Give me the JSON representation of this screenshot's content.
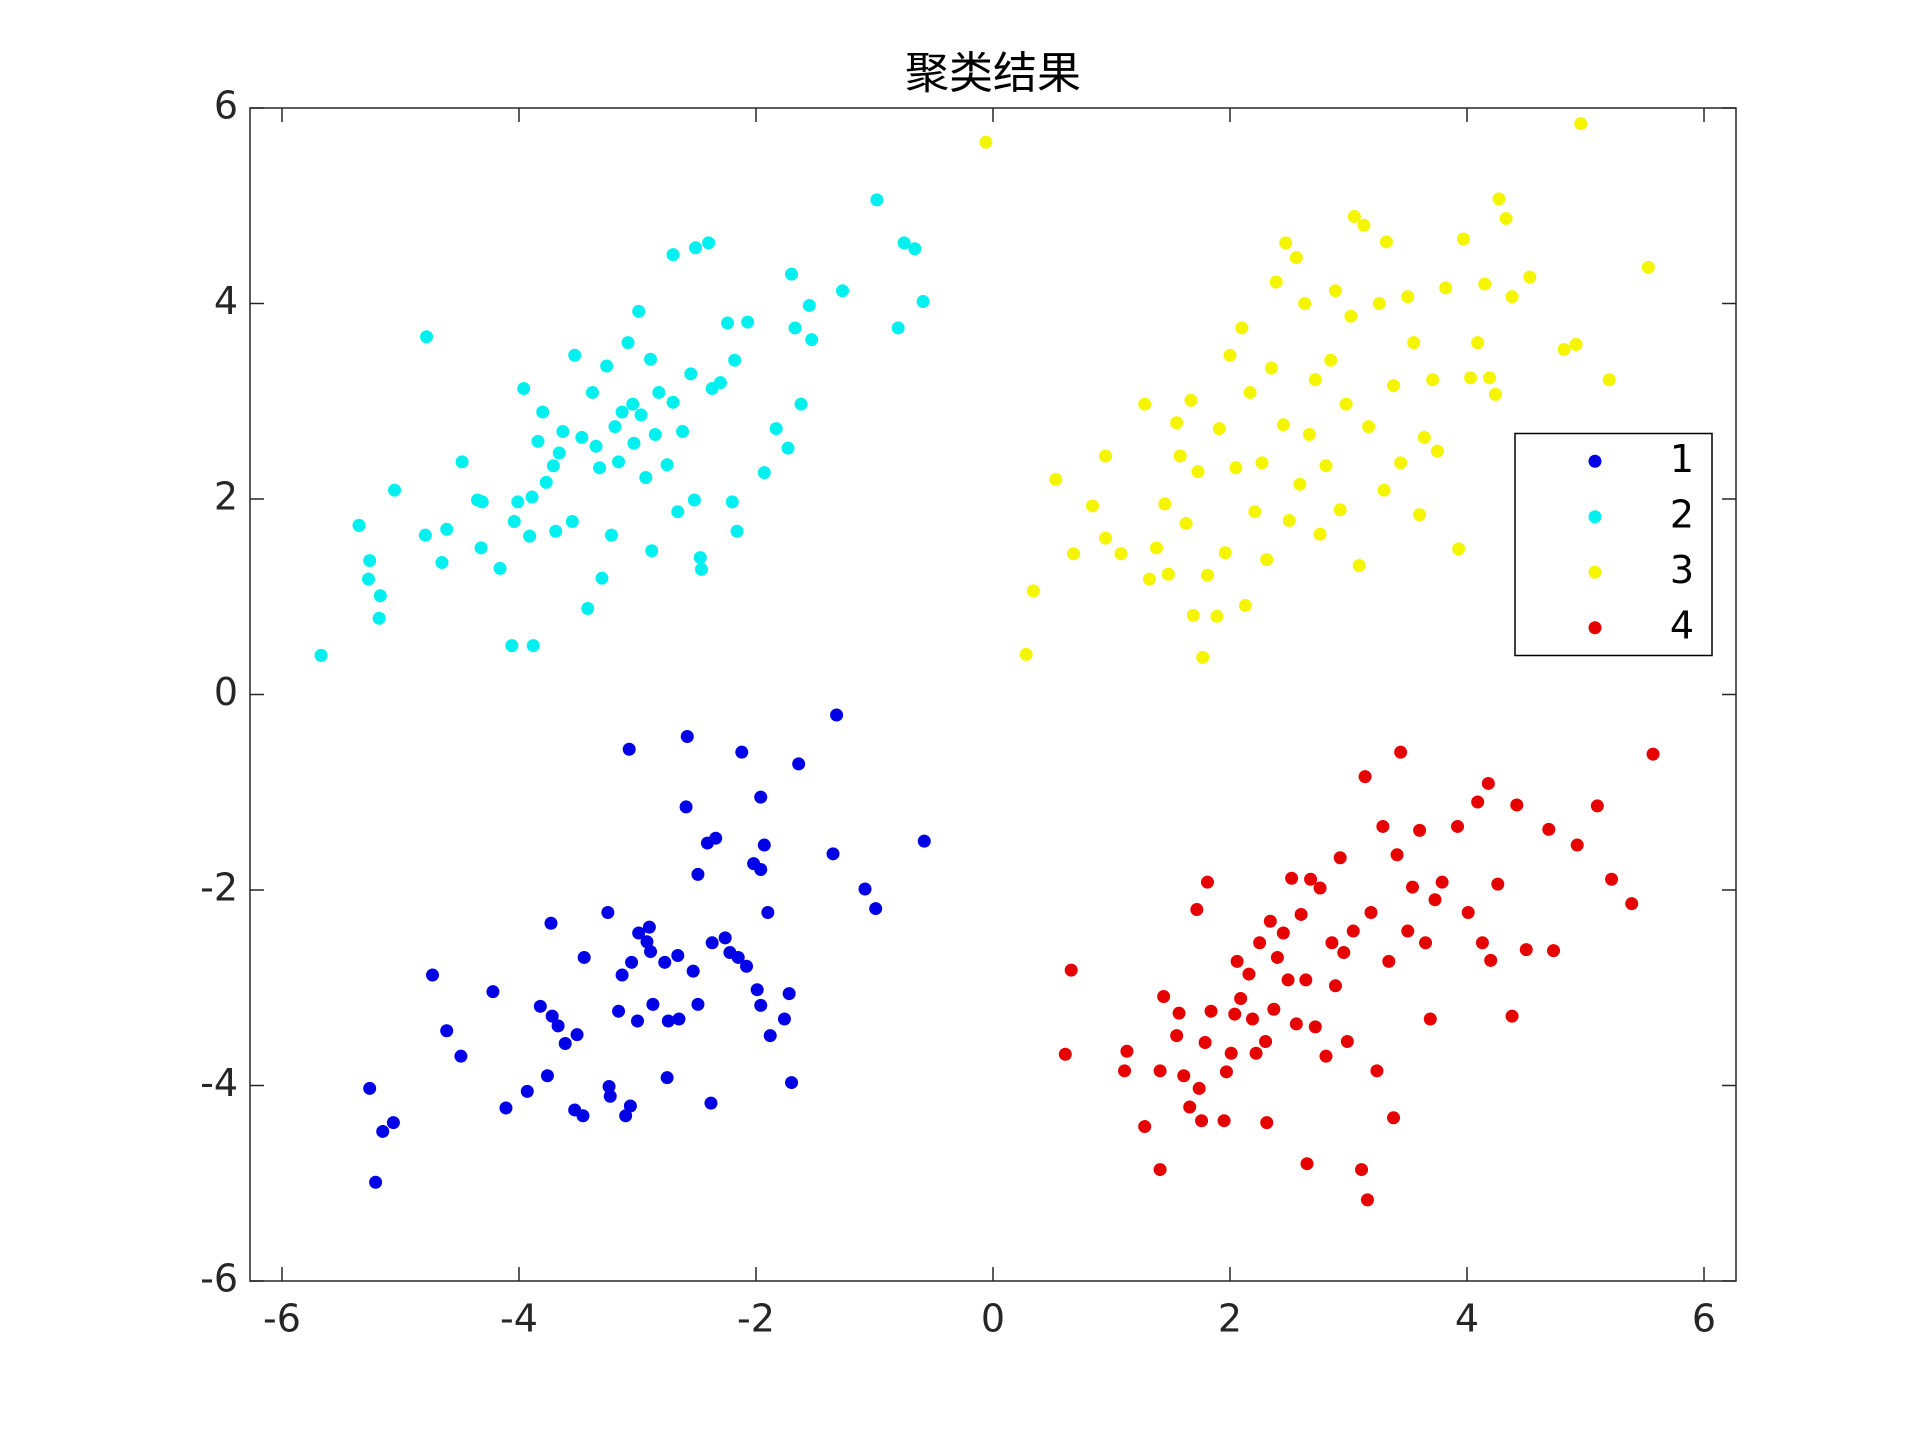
{
  "chart_data": {
    "type": "scatter",
    "title": "聚类结果",
    "xlim": [
      -6.27,
      6.27
    ],
    "ylim": [
      -6,
      6
    ],
    "xticks": [
      -6,
      -4,
      -2,
      0,
      2,
      4,
      6
    ],
    "yticks": [
      -6,
      -4,
      -2,
      0,
      2,
      4,
      6
    ],
    "legend": "east",
    "box": true,
    "series": [
      {
        "name": "1",
        "color": "#0000e6",
        "x": [
          -5.26,
          -5.21,
          -5.15,
          -5.06,
          -4.73,
          -4.61,
          -4.49,
          -4.22,
          -4.11,
          -3.93,
          -3.82,
          -3.76,
          -3.73,
          -3.72,
          -3.67,
          -3.61,
          -3.53,
          -3.51,
          -3.46,
          -3.45,
          -3.25,
          -3.24,
          -3.23,
          -3.16,
          -3.13,
          -3.1,
          -3.07,
          -3.06,
          -3.05,
          -3.0,
          -2.99,
          -2.92,
          -2.9,
          -2.89,
          -2.87,
          -2.77,
          -2.75,
          -2.74,
          -2.66,
          -2.65,
          -2.59,
          -2.58,
          -2.53,
          -2.49,
          -2.49,
          -2.41,
          -2.38,
          -2.37,
          -2.34,
          -2.26,
          -2.22,
          -2.15,
          -2.12,
          -2.08,
          -2.02,
          -1.99,
          -1.96,
          -1.96,
          -1.96,
          -1.93,
          -1.9,
          -1.88,
          -1.76,
          -1.72,
          -1.7,
          -1.64,
          -1.35,
          -1.32,
          -1.08,
          -0.99,
          -0.58
        ],
        "y": [
          -4.03,
          -4.99,
          -4.47,
          -4.38,
          -2.87,
          -3.44,
          -3.7,
          -3.04,
          -4.23,
          -4.06,
          -3.19,
          -3.9,
          -2.34,
          -3.29,
          -3.39,
          -3.57,
          -4.25,
          -3.48,
          -4.31,
          -2.69,
          -2.23,
          -4.01,
          -4.11,
          -3.24,
          -2.87,
          -4.31,
          -0.56,
          -4.21,
          -2.74,
          -3.34,
          -2.44,
          -2.53,
          -2.38,
          -2.63,
          -3.17,
          -2.74,
          -3.92,
          -3.34,
          -2.67,
          -3.32,
          -1.15,
          -0.43,
          -2.83,
          -3.17,
          -1.84,
          -1.52,
          -4.18,
          -2.54,
          -1.47,
          -2.49,
          -2.64,
          -2.69,
          -0.59,
          -2.78,
          -1.73,
          -3.02,
          -3.18,
          -1.05,
          -1.79,
          -1.54,
          -2.23,
          -3.49,
          -3.32,
          -3.06,
          -3.97,
          -0.71,
          -1.63,
          -0.21,
          -1.99,
          -2.19,
          -1.5
        ]
      },
      {
        "name": "2",
        "color": "#00f0f0",
        "x": [
          -5.67,
          -5.35,
          -5.26,
          -5.27,
          -5.17,
          -5.18,
          -5.05,
          -4.78,
          -4.79,
          -4.65,
          -4.61,
          -4.48,
          -4.35,
          -4.32,
          -4.31,
          -4.16,
          -4.06,
          -4.04,
          -4.01,
          -3.96,
          -3.91,
          -3.89,
          -3.88,
          -3.84,
          -3.8,
          -3.77,
          -3.71,
          -3.69,
          -3.66,
          -3.63,
          -3.55,
          -3.53,
          -3.47,
          -3.42,
          -3.38,
          -3.35,
          -3.32,
          -3.3,
          -3.26,
          -3.22,
          -3.19,
          -3.16,
          -3.13,
          -3.08,
          -3.04,
          -3.03,
          -2.99,
          -2.97,
          -2.93,
          -2.89,
          -2.88,
          -2.85,
          -2.82,
          -2.75,
          -2.7,
          -2.7,
          -2.66,
          -2.62,
          -2.55,
          -2.52,
          -2.51,
          -2.47,
          -2.46,
          -2.4,
          -2.37,
          -2.3,
          -2.24,
          -2.2,
          -2.18,
          -2.16,
          -2.07,
          -1.93,
          -1.83,
          -1.73,
          -1.7,
          -1.67,
          -1.62,
          -1.55,
          -1.53,
          -1.27,
          -0.98,
          -0.8,
          -0.75,
          -0.66,
          -0.59
        ],
        "y": [
          0.4,
          1.73,
          1.37,
          1.18,
          1.01,
          0.78,
          2.09,
          3.66,
          1.63,
          1.35,
          1.69,
          2.38,
          1.99,
          1.5,
          1.97,
          1.29,
          0.5,
          1.77,
          1.97,
          3.13,
          1.62,
          2.02,
          0.5,
          2.59,
          2.89,
          2.17,
          2.34,
          1.67,
          2.47,
          2.69,
          1.77,
          3.47,
          2.63,
          0.88,
          3.09,
          2.54,
          2.32,
          1.19,
          3.36,
          1.63,
          2.74,
          2.38,
          2.89,
          3.6,
          2.97,
          2.57,
          3.92,
          2.86,
          2.22,
          3.43,
          1.47,
          2.66,
          3.09,
          2.35,
          4.5,
          2.99,
          1.87,
          2.69,
          3.28,
          1.99,
          4.57,
          1.4,
          1.28,
          4.62,
          3.13,
          3.19,
          3.8,
          1.97,
          3.42,
          1.67,
          3.81,
          2.27,
          2.72,
          2.52,
          4.3,
          3.75,
          2.97,
          3.98,
          3.63,
          4.13,
          5.06,
          3.75,
          4.62,
          4.56,
          4.02
        ]
      },
      {
        "name": "3",
        "color": "#f5f500",
        "x": [
          -0.06,
          0.28,
          0.34,
          0.53,
          0.68,
          0.84,
          0.95,
          0.95,
          1.08,
          1.28,
          1.32,
          1.38,
          1.45,
          1.48,
          1.55,
          1.58,
          1.63,
          1.67,
          1.69,
          1.73,
          1.77,
          1.81,
          1.89,
          1.91,
          1.96,
          2.0,
          2.05,
          2.1,
          2.13,
          2.17,
          2.21,
          2.27,
          2.31,
          2.35,
          2.39,
          2.45,
          2.47,
          2.5,
          2.56,
          2.59,
          2.63,
          2.67,
          2.72,
          2.76,
          2.81,
          2.85,
          2.89,
          2.93,
          2.98,
          3.02,
          3.05,
          3.09,
          3.13,
          3.17,
          3.26,
          3.3,
          3.32,
          3.38,
          3.44,
          3.5,
          3.55,
          3.6,
          3.64,
          3.71,
          3.75,
          3.82,
          3.93,
          3.97,
          4.03,
          4.09,
          4.15,
          4.19,
          4.24,
          4.27,
          4.33,
          4.38,
          4.53,
          4.82,
          4.92,
          4.96,
          5.2,
          5.53
        ],
        "y": [
          5.65,
          0.41,
          1.06,
          2.2,
          1.44,
          1.93,
          2.44,
          1.6,
          1.44,
          2.97,
          1.18,
          1.5,
          1.95,
          1.23,
          2.78,
          2.44,
          1.75,
          3.01,
          0.81,
          2.28,
          0.38,
          1.22,
          0.8,
          2.72,
          1.45,
          3.47,
          2.32,
          3.75,
          0.91,
          3.09,
          1.87,
          2.37,
          1.38,
          3.34,
          4.22,
          2.76,
          4.62,
          1.78,
          4.47,
          2.15,
          4.0,
          2.66,
          3.22,
          1.64,
          2.34,
          3.42,
          4.13,
          1.89,
          2.97,
          3.87,
          4.89,
          1.32,
          4.8,
          2.74,
          4.0,
          2.09,
          4.63,
          3.16,
          2.37,
          4.07,
          3.6,
          1.84,
          2.63,
          3.22,
          2.49,
          4.16,
          1.49,
          4.66,
          3.24,
          3.6,
          4.2,
          3.24,
          3.07,
          5.07,
          4.87,
          4.07,
          4.27,
          3.53,
          3.58,
          5.84,
          3.22,
          4.37
        ]
      },
      {
        "name": "4",
        "color": "#e60000",
        "x": [
          0.61,
          0.66,
          1.11,
          1.13,
          1.28,
          1.41,
          1.41,
          1.44,
          1.55,
          1.57,
          1.61,
          1.66,
          1.72,
          1.74,
          1.76,
          1.79,
          1.81,
          1.84,
          1.95,
          1.97,
          2.01,
          2.04,
          2.06,
          2.09,
          2.16,
          2.19,
          2.22,
          2.25,
          2.3,
          2.31,
          2.34,
          2.37,
          2.4,
          2.45,
          2.49,
          2.52,
          2.56,
          2.6,
          2.64,
          2.65,
          2.68,
          2.72,
          2.76,
          2.81,
          2.86,
          2.89,
          2.93,
          2.96,
          2.99,
          3.04,
          3.11,
          3.14,
          3.16,
          3.19,
          3.24,
          3.29,
          3.34,
          3.38,
          3.41,
          3.44,
          3.5,
          3.54,
          3.6,
          3.65,
          3.69,
          3.73,
          3.79,
          3.92,
          4.01,
          4.09,
          4.13,
          4.18,
          4.2,
          4.26,
          4.38,
          4.42,
          4.5,
          4.69,
          4.73,
          4.93,
          5.1,
          5.22,
          5.39,
          5.57
        ],
        "y": [
          -3.68,
          -2.82,
          -3.85,
          -3.65,
          -4.42,
          -4.86,
          -3.85,
          -3.09,
          -3.49,
          -3.26,
          -3.9,
          -4.22,
          -2.2,
          -4.03,
          -4.36,
          -3.56,
          -1.92,
          -3.24,
          -4.36,
          -3.86,
          -3.67,
          -3.27,
          -2.73,
          -3.11,
          -2.86,
          -3.32,
          -3.67,
          -2.54,
          -3.55,
          -4.38,
          -2.32,
          -3.22,
          -2.69,
          -2.44,
          -2.92,
          -1.88,
          -3.37,
          -2.25,
          -2.92,
          -4.8,
          -1.89,
          -3.4,
          -1.98,
          -3.7,
          -2.54,
          -2.98,
          -1.67,
          -2.64,
          -3.55,
          -2.42,
          -4.86,
          -0.84,
          -5.17,
          -2.23,
          -3.85,
          -1.35,
          -2.73,
          -4.33,
          -1.64,
          -0.59,
          -2.42,
          -1.97,
          -1.39,
          -2.54,
          -3.32,
          -2.1,
          -1.92,
          -1.35,
          -2.23,
          -1.1,
          -2.54,
          -0.91,
          -2.72,
          -1.94,
          -3.29,
          -1.13,
          -2.61,
          -1.38,
          -2.62,
          -1.54,
          -1.14,
          -1.89,
          -2.14,
          -0.61
        ]
      }
    ]
  }
}
